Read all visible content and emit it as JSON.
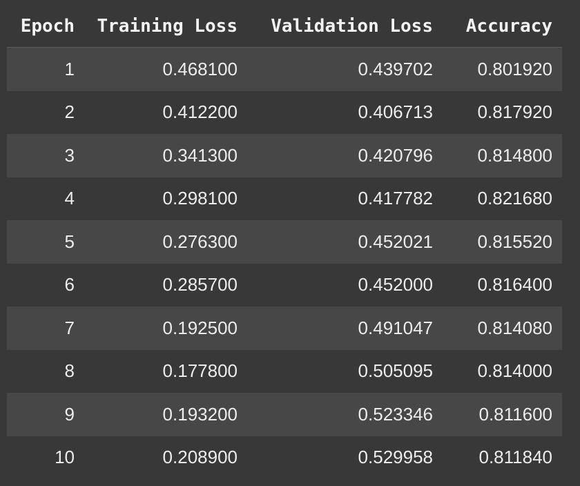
{
  "table": {
    "headers": [
      "Epoch",
      "Training Loss",
      "Validation Loss",
      "Accuracy"
    ],
    "rows": [
      [
        "1",
        "0.468100",
        "0.439702",
        "0.801920"
      ],
      [
        "2",
        "0.412200",
        "0.406713",
        "0.817920"
      ],
      [
        "3",
        "0.341300",
        "0.420796",
        "0.814800"
      ],
      [
        "4",
        "0.298100",
        "0.417782",
        "0.821680"
      ],
      [
        "5",
        "0.276300",
        "0.452021",
        "0.815520"
      ],
      [
        "6",
        "0.285700",
        "0.452000",
        "0.816400"
      ],
      [
        "7",
        "0.192500",
        "0.491047",
        "0.814080"
      ],
      [
        "8",
        "0.177800",
        "0.505095",
        "0.814000"
      ],
      [
        "9",
        "0.193200",
        "0.523346",
        "0.811600"
      ],
      [
        "10",
        "0.208900",
        "0.529958",
        "0.811840"
      ]
    ]
  },
  "colors": {
    "background": "#383838",
    "row_stripe": "#474747",
    "text": "#ececec"
  }
}
